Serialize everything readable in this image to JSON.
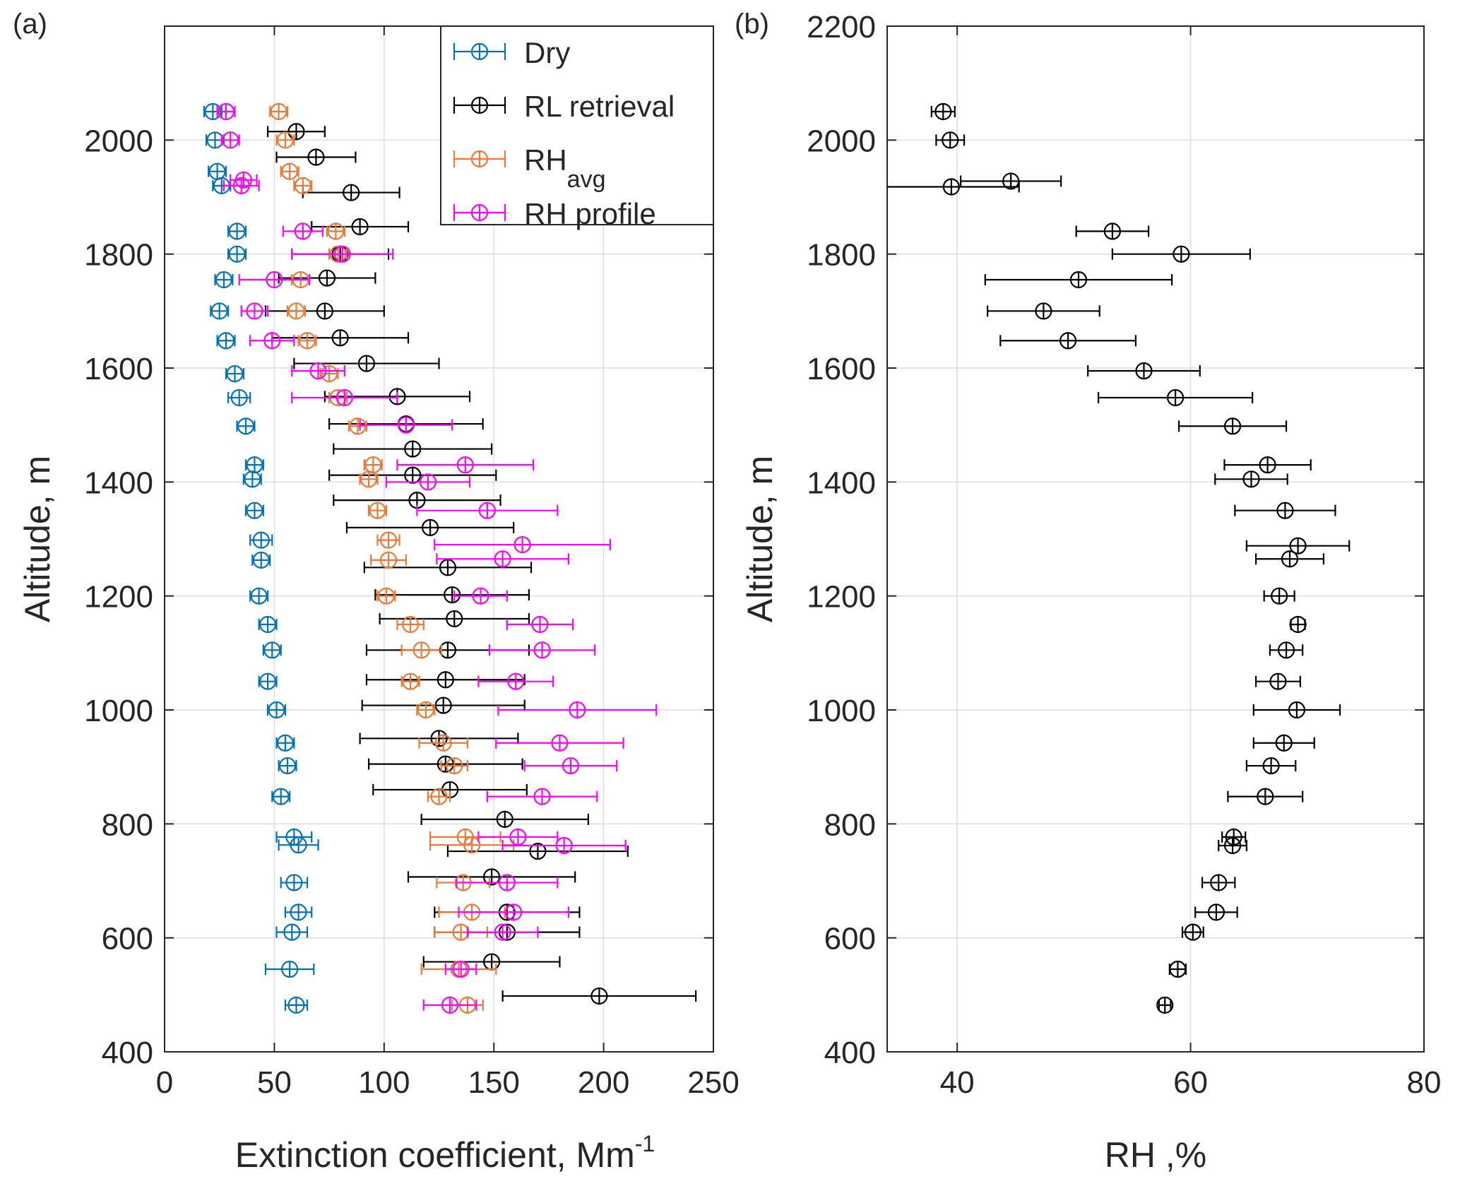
{
  "chart_data": [
    {
      "panel": "(a)",
      "type": "scatter",
      "xlabel": "Extinction coefficient, Mm",
      "xlabel_sup": "-1",
      "ylabel": "Altitude, m",
      "xlim": [
        0,
        250
      ],
      "ylim": [
        400,
        2200
      ],
      "xticks": [
        0,
        50,
        100,
        150,
        200,
        250
      ],
      "yticks": [
        400,
        600,
        800,
        1000,
        1200,
        1400,
        1600,
        1800,
        2000
      ],
      "grid": true,
      "legend_position": "top-right",
      "series": [
        {
          "name": "Dry",
          "name_sub": "",
          "color": "#0072BD",
          "points": [
            [
              22,
              2050,
              4
            ],
            [
              23,
              2000,
              4
            ],
            [
              24,
              1945,
              4
            ],
            [
              26,
              1920,
              4
            ],
            [
              33,
              1840,
              4
            ],
            [
              33,
              1800,
              4
            ],
            [
              27,
              1755,
              4
            ],
            [
              25,
              1700,
              4
            ],
            [
              28,
              1648,
              4
            ],
            [
              32,
              1590,
              4
            ],
            [
              34,
              1548,
              5
            ],
            [
              37,
              1498,
              4
            ],
            [
              41,
              1430,
              4
            ],
            [
              40,
              1405,
              4
            ],
            [
              41,
              1350,
              4
            ],
            [
              44,
              1298,
              5
            ],
            [
              44,
              1263,
              4
            ],
            [
              43,
              1200,
              4
            ],
            [
              47,
              1150,
              4
            ],
            [
              49,
              1105,
              4
            ],
            [
              47,
              1050,
              4
            ],
            [
              51,
              1000,
              4
            ],
            [
              55,
              942,
              4
            ],
            [
              56,
              902,
              4
            ],
            [
              53,
              848,
              4
            ],
            [
              59,
              777,
              8
            ],
            [
              61,
              763,
              9
            ],
            [
              59,
              697,
              6
            ],
            [
              61,
              645,
              6
            ],
            [
              58,
              610,
              7
            ],
            [
              57,
              545,
              11
            ],
            [
              60,
              482,
              5
            ]
          ]
        },
        {
          "name": "RL retrieval",
          "name_sub": "",
          "color": "#000000",
          "points": [
            [
              60,
              2015,
              13
            ],
            [
              69,
              1970,
              18
            ],
            [
              85,
              1908,
              22
            ],
            [
              89,
              1848,
              22
            ],
            [
              80,
              1800,
              22
            ],
            [
              74,
              1758,
              22
            ],
            [
              73,
              1700,
              27
            ],
            [
              80,
              1653,
              31
            ],
            [
              92,
              1608,
              33
            ],
            [
              106,
              1550,
              33
            ],
            [
              110,
              1502,
              35
            ],
            [
              113,
              1458,
              36
            ],
            [
              113,
              1412,
              38
            ],
            [
              115,
              1368,
              38
            ],
            [
              121,
              1320,
              38
            ],
            [
              129,
              1250,
              38
            ],
            [
              131,
              1202,
              35
            ],
            [
              132,
              1160,
              34
            ],
            [
              129,
              1105,
              37
            ],
            [
              128,
              1053,
              36
            ],
            [
              127,
              1008,
              37
            ],
            [
              125,
              950,
              36
            ],
            [
              128,
              905,
              35
            ],
            [
              130,
              860,
              35
            ],
            [
              155,
              808,
              38
            ],
            [
              170,
              752,
              41
            ],
            [
              149,
              707,
              38
            ],
            [
              156,
              645,
              33
            ],
            [
              156,
              610,
              33
            ],
            [
              149,
              558,
              31
            ],
            [
              198,
              498,
              44
            ]
          ]
        },
        {
          "name": "RH",
          "name_sub": "avg",
          "color": "#EE7733",
          "points": [
            [
              52,
              2050,
              4
            ],
            [
              55,
              2000,
              4
            ],
            [
              57,
              1945,
              4
            ],
            [
              63,
              1920,
              4
            ],
            [
              78,
              1840,
              4
            ],
            [
              79,
              1800,
              4
            ],
            [
              62,
              1755,
              4
            ],
            [
              60,
              1700,
              4
            ],
            [
              65,
              1648,
              4
            ],
            [
              75,
              1590,
              4
            ],
            [
              79,
              1548,
              4
            ],
            [
              88,
              1498,
              4
            ],
            [
              95,
              1430,
              4
            ],
            [
              93,
              1405,
              4
            ],
            [
              97,
              1350,
              4
            ],
            [
              102,
              1298,
              5
            ],
            [
              102,
              1263,
              8
            ],
            [
              101,
              1200,
              4
            ],
            [
              112,
              1150,
              6
            ],
            [
              117,
              1105,
              9
            ],
            [
              112,
              1050,
              4
            ],
            [
              119,
              1000,
              4
            ],
            [
              127,
              942,
              11
            ],
            [
              132,
              902,
              6
            ],
            [
              125,
              848,
              5
            ],
            [
              137,
              777,
              16
            ],
            [
              140,
              763,
              19
            ],
            [
              136,
              697,
              12
            ],
            [
              140,
              645,
              15
            ],
            [
              135,
              610,
              12
            ],
            [
              134,
              545,
              17
            ],
            [
              138,
              482,
              7
            ]
          ]
        },
        {
          "name": "RH profile",
          "name_sub": "",
          "color": "#FF00FF",
          "points": [
            [
              28,
              2050,
              4
            ],
            [
              30,
              2000,
              4
            ],
            [
              35,
              1920,
              8
            ],
            [
              36,
              1930,
              6
            ],
            [
              63,
              1840,
              9
            ],
            [
              81,
              1800,
              23
            ],
            [
              50,
              1755,
              16
            ],
            [
              41,
              1700,
              6
            ],
            [
              49,
              1648,
              10
            ],
            [
              70,
              1595,
              12
            ],
            [
              82,
              1548,
              24
            ],
            [
              110,
              1500,
              21
            ],
            [
              137,
              1430,
              31
            ],
            [
              120,
              1400,
              19
            ],
            [
              147,
              1350,
              32
            ],
            [
              163,
              1290,
              40
            ],
            [
              154,
              1265,
              30
            ],
            [
              144,
              1200,
              12
            ],
            [
              171,
              1150,
              15
            ],
            [
              172,
              1105,
              24
            ],
            [
              160,
              1050,
              17
            ],
            [
              188,
              1000,
              36
            ],
            [
              180,
              942,
              29
            ],
            [
              185,
              902,
              21
            ],
            [
              172,
              848,
              25
            ],
            [
              161,
              777,
              18
            ],
            [
              182,
              762,
              28
            ],
            [
              156,
              697,
              23
            ],
            [
              159,
              645,
              25
            ],
            [
              154,
              610,
              16
            ],
            [
              135,
              545,
              7
            ],
            [
              130,
              482,
              12
            ]
          ]
        }
      ]
    },
    {
      "panel": "(b)",
      "type": "scatter",
      "xlabel": "RH ,%",
      "ylabel": "Altitude, m",
      "xlim": [
        34,
        80
      ],
      "ylim": [
        400,
        2200
      ],
      "xticks": [
        40,
        60,
        80
      ],
      "yticks": [
        400,
        600,
        800,
        1000,
        1200,
        1400,
        1600,
        1800,
        2000,
        2200
      ],
      "grid": true,
      "series": [
        {
          "name": "",
          "color": "#000000",
          "points": [
            [
              38.8,
              2050,
              1
            ],
            [
              39.4,
              2000,
              1.2
            ],
            [
              44.6,
              1928,
              4.3
            ],
            [
              39.5,
              1918,
              5.8
            ],
            [
              53.3,
              1840,
              3.1
            ],
            [
              59.2,
              1800,
              5.9
            ],
            [
              50.4,
              1755,
              8
            ],
            [
              47.4,
              1700,
              4.8
            ],
            [
              49.5,
              1648,
              5.8
            ],
            [
              56.0,
              1595,
              4.8
            ],
            [
              58.7,
              1548,
              6.6
            ],
            [
              63.6,
              1498,
              4.6
            ],
            [
              66.6,
              1430,
              3.7
            ],
            [
              65.2,
              1405,
              3.1
            ],
            [
              68.1,
              1350,
              4.3
            ],
            [
              69.2,
              1288,
              4.4
            ],
            [
              68.5,
              1265,
              2.9
            ],
            [
              67.6,
              1200,
              1.3
            ],
            [
              69.2,
              1150,
              0.6
            ],
            [
              68.2,
              1105,
              1.4
            ],
            [
              67.5,
              1050,
              1.9
            ],
            [
              69.1,
              1000,
              3.7
            ],
            [
              68.0,
              942,
              2.6
            ],
            [
              66.9,
              902,
              2.1
            ],
            [
              66.4,
              848,
              3.2
            ],
            [
              63.7,
              777,
              1
            ],
            [
              63.6,
              762,
              1.2
            ],
            [
              62.4,
              697,
              1.4
            ],
            [
              62.2,
              645,
              1.8
            ],
            [
              60.2,
              610,
              0.9
            ],
            [
              58.9,
              545,
              0.7
            ],
            [
              57.8,
              482,
              0.5
            ]
          ]
        }
      ]
    }
  ]
}
